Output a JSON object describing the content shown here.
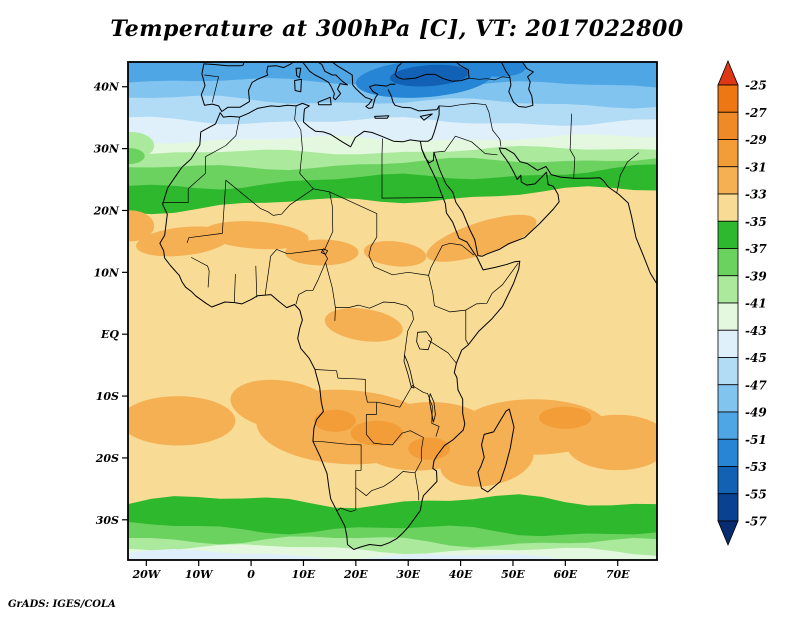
{
  "footer": {
    "credit": "GrADS: IGES/COLA"
  },
  "chart_data": {
    "type": "heatmap",
    "title": "Temperature at 300hPa [C], VT: 2017022800",
    "units": "C",
    "legend_position": "right",
    "grid": false,
    "region": {
      "lon_min": -23.5,
      "lon_max": 77.5,
      "lat_min": -36.5,
      "lat_max": 44
    },
    "levels": [
      -25,
      -27,
      -29,
      -31,
      -33,
      -35,
      -37,
      -39,
      -41,
      -43,
      -45,
      -47,
      -49,
      -51,
      -53,
      -55,
      -57
    ],
    "palette": {
      "above": "#DE3715",
      "25_27": "#EE7714",
      "27_29": "#F08A26",
      "29_31": "#F29D38",
      "31_33": "#F5B054",
      "33_35": "#F8DC96",
      "35_37": "#2DB82D",
      "37_39": "#6BD25F",
      "39_41": "#ABE99D",
      "41_43": "#E3F8DE",
      "43_45": "#DFF0FA",
      "45_47": "#B2DCF6",
      "47_49": "#81C4EF",
      "49_51": "#4FA6E4",
      "51_53": "#2685D4",
      "53_55": "#1162B5",
      "55_57": "#0A4190",
      "below": "#072C71"
    },
    "colorbar_cells": [
      "25_27",
      "27_29",
      "29_31",
      "31_33",
      "33_35",
      "35_37",
      "37_39",
      "39_41",
      "41_43",
      "43_45",
      "45_47",
      "47_49",
      "49_51",
      "51_53",
      "53_55",
      "55_57"
    ],
    "xticks": [
      {
        "label": "20W",
        "lon": -20
      },
      {
        "label": "10W",
        "lon": -10
      },
      {
        "label": "0",
        "lon": 0
      },
      {
        "label": "10E",
        "lon": 10
      },
      {
        "label": "20E",
        "lon": 20
      },
      {
        "label": "30E",
        "lon": 30
      },
      {
        "label": "40E",
        "lon": 40
      },
      {
        "label": "50E",
        "lon": 50
      },
      {
        "label": "60E",
        "lon": 60
      },
      {
        "label": "70E",
        "lon": 70
      }
    ],
    "yticks": [
      {
        "label": "40N",
        "lat": 40
      },
      {
        "label": "30N",
        "lat": 30
      },
      {
        "label": "20N",
        "lat": 20
      },
      {
        "label": "10N",
        "lat": 10
      },
      {
        "label": "EQ",
        "lat": 0
      },
      {
        "label": "10S",
        "lat": -10
      },
      {
        "label": "20S",
        "lat": -20
      },
      {
        "label": "30S",
        "lat": -30
      }
    ],
    "field_bands": [
      {
        "color": "49_51"
      },
      {
        "from_lat": 40.6,
        "color": "47_49",
        "amp": 2.5,
        "tilt": -1
      },
      {
        "from_lat": 37.6,
        "color": "45_47",
        "amp": 3,
        "tilt": -1
      },
      {
        "from_lat": 34.4,
        "color": "43_45",
        "amp": 3,
        "tilt": -0.5
      },
      {
        "from_lat": 31.6,
        "color": "41_43",
        "amp": 2.5,
        "tilt": 0.5
      },
      {
        "from_lat": 29.6,
        "color": "39_41",
        "amp": 2.5,
        "tilt": 1
      },
      {
        "from_lat": 27.6,
        "color": "37_39",
        "amp": 3,
        "tilt": 2
      },
      {
        "from_lat": 25.2,
        "color": "35_37",
        "amp": 3.5,
        "tilt": 3
      },
      {
        "from_lat": 21.8,
        "color": "33_35",
        "amp": 3.5,
        "tilt": 3.5
      },
      {
        "from_lat": -27.0,
        "color": "35_37",
        "amp": 5,
        "tilt": 0
      },
      {
        "from_lat": -31.6,
        "color": "37_39",
        "amp": 4,
        "tilt": -1
      },
      {
        "from_lat": -33.4,
        "color": "39_41",
        "amp": 4,
        "tilt": -1
      },
      {
        "from_lat": -34.8,
        "color": "41_43",
        "amp": 3,
        "tilt": -1
      },
      {
        "from_lat": -35.8,
        "color": "43_45",
        "amp": 3,
        "tilt": -1
      }
    ],
    "warm_cold_patches": [
      {
        "lon": 33,
        "lat": 41.3,
        "rx_deg": 13,
        "ry_deg": 3.0,
        "rot": -4,
        "color": "51_53"
      },
      {
        "lon": 34,
        "lat": 41.8,
        "rx_deg": 7.5,
        "ry_deg": 1.7,
        "rot": -4,
        "color": "53_55"
      },
      {
        "lon": 47.5,
        "lat": 43.2,
        "rx_deg": 5,
        "ry_deg": 1.6,
        "rot": 0,
        "color": "51_53"
      },
      {
        "lon": -23,
        "lat": 30.5,
        "rx_deg": 4.5,
        "ry_deg": 2.2,
        "rot": 0,
        "color": "39_41"
      },
      {
        "lon": -23.3,
        "lat": 28.8,
        "rx_deg": 3,
        "ry_deg": 1.3,
        "rot": 0,
        "color": "37_39"
      },
      {
        "lon": -23,
        "lat": 17.5,
        "rx_deg": 4.5,
        "ry_deg": 2.5,
        "rot": 0,
        "color": "31_33"
      },
      {
        "lon": -13,
        "lat": 15,
        "rx_deg": 9,
        "ry_deg": 2.3,
        "rot": -6,
        "color": "31_33"
      },
      {
        "lon": 1,
        "lat": 16,
        "rx_deg": 10,
        "ry_deg": 2.2,
        "rot": 4,
        "color": "31_33"
      },
      {
        "lon": 13.5,
        "lat": 13.2,
        "rx_deg": 7,
        "ry_deg": 2.1,
        "rot": 0,
        "color": "31_33"
      },
      {
        "lon": 27.5,
        "lat": 13,
        "rx_deg": 6,
        "ry_deg": 2,
        "rot": 6,
        "color": "31_33"
      },
      {
        "lon": 44,
        "lat": 15.5,
        "rx_deg": 11,
        "ry_deg": 2.6,
        "rot": -18,
        "color": "31_33"
      },
      {
        "lon": 21.5,
        "lat": 1.5,
        "rx_deg": 7.5,
        "ry_deg": 2.6,
        "rot": 8,
        "color": "31_33"
      },
      {
        "lon": 18,
        "lat": -15,
        "rx_deg": 17,
        "ry_deg": 6,
        "rot": 3,
        "color": "31_33"
      },
      {
        "lon": 33,
        "lat": -16.5,
        "rx_deg": 13,
        "ry_deg": 5.5,
        "rot": -4,
        "color": "31_33"
      },
      {
        "lon": 6,
        "lat": -11.5,
        "rx_deg": 10,
        "ry_deg": 4,
        "rot": 8,
        "color": "31_33"
      },
      {
        "lon": -14,
        "lat": -14,
        "rx_deg": 11,
        "ry_deg": 4,
        "rot": 0,
        "color": "31_33"
      },
      {
        "lon": 54,
        "lat": -15,
        "rx_deg": 14,
        "ry_deg": 4.5,
        "rot": 0,
        "color": "31_33"
      },
      {
        "lon": 70,
        "lat": -17.5,
        "rx_deg": 10,
        "ry_deg": 4.5,
        "rot": 0,
        "color": "31_33"
      },
      {
        "lon": 45,
        "lat": -20.5,
        "rx_deg": 9,
        "ry_deg": 4,
        "rot": -10,
        "color": "31_33"
      },
      {
        "lon": 24,
        "lat": -16,
        "rx_deg": 5,
        "ry_deg": 2,
        "rot": 0,
        "color": "29_31"
      },
      {
        "lon": 34,
        "lat": -18.5,
        "rx_deg": 4,
        "ry_deg": 1.8,
        "rot": 0,
        "color": "29_31"
      },
      {
        "lon": 60,
        "lat": -13.5,
        "rx_deg": 5,
        "ry_deg": 1.8,
        "rot": 0,
        "color": "29_31"
      },
      {
        "lon": 16,
        "lat": -14,
        "rx_deg": 4,
        "ry_deg": 1.8,
        "rot": 0,
        "color": "29_31"
      }
    ]
  }
}
